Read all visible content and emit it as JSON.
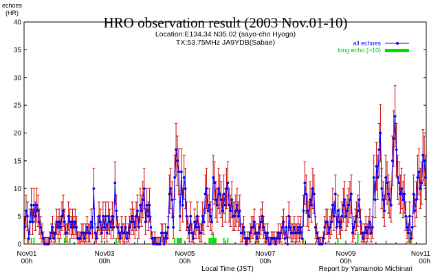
{
  "chart_data": {
    "type": "line",
    "title": "HRO observation result (2003 Nov.01-10)",
    "subtitle_1": "Location:E134.34 N35.02 (sayo-cho Hyogo)",
    "subtitle_2": "TX:53.75MHz JA9YDB(Sabae)",
    "ylabel_1": "echoes",
    "ylabel_2": "(HR)",
    "xlabel": "Local Time (JST)",
    "credit": "Report by Yamamoto Michinari",
    "ylim": [
      0,
      40
    ],
    "yticks": [
      "0",
      "5",
      "10",
      "15",
      "20",
      "25",
      "30",
      "35",
      "40"
    ],
    "xticks": [
      {
        "hour": 0,
        "line1": "Nov01",
        "line2": "00h"
      },
      {
        "hour": 48,
        "line1": "Nov03",
        "line2": "00h"
      },
      {
        "hour": 96,
        "line1": "Nov05",
        "line2": "00h"
      },
      {
        "hour": 144,
        "line1": "Nov07",
        "line2": "00h"
      },
      {
        "hour": 192,
        "line1": "Nov09",
        "line2": "00h"
      },
      {
        "hour": 240,
        "line1": "Nov11",
        "line2": "00h"
      }
    ],
    "xlim_hours": [
      0,
      240
    ],
    "grid": false,
    "legend_position": "top-right",
    "legend": [
      {
        "label": "all echoes",
        "color": "#0000ff"
      },
      {
        "label": "long echo (>10)",
        "color": "#00e000"
      }
    ],
    "series": [
      {
        "name": "all echoes",
        "color": "#0000ff",
        "error_color": "#cc0000",
        "values": [
          3,
          6,
          5,
          1,
          4,
          7,
          4,
          7,
          5,
          7,
          6,
          4,
          3,
          2,
          1,
          0,
          0,
          0,
          0,
          1,
          2,
          3,
          1,
          2,
          4,
          3,
          4,
          3,
          5,
          6,
          4,
          2,
          2,
          5,
          4,
          3,
          4,
          3,
          4,
          3,
          1,
          1,
          1,
          2,
          2,
          1,
          2,
          3,
          2,
          2,
          4,
          3,
          10,
          2,
          1,
          3,
          5,
          4,
          2,
          5,
          3,
          5,
          2,
          5,
          4,
          3,
          5,
          3,
          11,
          6,
          3,
          2,
          1,
          3,
          2,
          2,
          3,
          1,
          2,
          3,
          4,
          5,
          4,
          3,
          5,
          6,
          3,
          7,
          6,
          8,
          10,
          4,
          7,
          5,
          7,
          3,
          1,
          0,
          1,
          0,
          0,
          0,
          0,
          2,
          2,
          0,
          2,
          1,
          3,
          9,
          10,
          8,
          3,
          12,
          17,
          15,
          13,
          5,
          13,
          7,
          12,
          10,
          5,
          3,
          2,
          5,
          2,
          1,
          4,
          3,
          5,
          3,
          2,
          2,
          5,
          4,
          9,
          10,
          6,
          7,
          5,
          4,
          12,
          11,
          8,
          7,
          10,
          9,
          8,
          6,
          9,
          7,
          10,
          11,
          7,
          6,
          8,
          5,
          5,
          6,
          7,
          5,
          6,
          2,
          2,
          3,
          1,
          0,
          1,
          1,
          2,
          3,
          3,
          4,
          2,
          1,
          2,
          3,
          4,
          5,
          3,
          2,
          1,
          2,
          0,
          0,
          1,
          1,
          1,
          0,
          1,
          2,
          1,
          2,
          3,
          4,
          1,
          3,
          0,
          5,
          3,
          2,
          2,
          3,
          2,
          2,
          3,
          2,
          3,
          1,
          6,
          11,
          9,
          6,
          5,
          8,
          7,
          10,
          9,
          3,
          2,
          1,
          0,
          0,
          0,
          1,
          3,
          4,
          4,
          2,
          3,
          4,
          7,
          5,
          9,
          3,
          6,
          4,
          3,
          5,
          7,
          8,
          5,
          6,
          7,
          8,
          9,
          2,
          3,
          4,
          5,
          6,
          8,
          4,
          2,
          1,
          2,
          3,
          2,
          3,
          4,
          2,
          3,
          12,
          8,
          14,
          12,
          17,
          20,
          10,
          8,
          6,
          12,
          11,
          9,
          8,
          7,
          15,
          19,
          23,
          17,
          12,
          11,
          9,
          10,
          8,
          9,
          5,
          3,
          2,
          5,
          1,
          3,
          9,
          6,
          8,
          12,
          13,
          10,
          11,
          16,
          15,
          12
        ]
      }
    ],
    "long_echo_values": [
      0,
      0,
      1,
      0,
      0,
      1,
      0,
      1,
      0,
      0,
      0,
      0,
      0,
      0,
      0,
      0,
      0,
      0,
      0,
      0,
      0,
      0,
      0,
      0,
      0,
      0,
      1,
      0,
      0,
      0,
      1,
      0,
      0,
      0,
      1,
      0,
      0,
      0,
      0,
      0,
      0,
      0,
      0,
      0,
      0,
      0,
      0,
      0,
      0,
      0,
      0,
      0,
      0,
      0,
      0,
      0,
      0,
      0,
      0,
      0,
      0,
      0,
      0,
      0,
      0,
      0,
      0,
      0,
      0,
      1,
      0,
      0,
      0,
      0,
      0,
      0,
      0,
      0,
      0,
      0,
      0,
      0,
      0,
      0,
      0,
      1,
      0,
      0,
      0,
      0,
      0,
      0,
      0,
      0,
      0,
      0,
      0,
      0,
      0,
      0,
      0,
      0,
      0,
      0,
      0,
      0,
      0,
      0,
      0,
      0,
      0,
      0,
      0,
      1,
      0,
      1,
      1,
      1,
      1,
      0,
      0,
      0,
      0,
      0,
      0,
      0,
      0,
      0,
      0,
      0,
      0,
      0,
      0,
      0,
      0,
      0,
      0,
      0,
      0,
      1,
      1,
      1,
      2,
      1,
      1,
      0,
      0,
      0,
      0,
      0,
      1,
      0,
      0,
      1,
      0,
      0,
      0,
      0,
      0,
      0,
      0,
      0,
      0,
      0,
      0,
      0,
      0,
      0,
      0,
      0,
      0,
      0,
      0,
      0,
      0,
      0,
      1,
      0,
      0,
      0,
      0,
      0,
      0,
      0,
      0,
      0,
      0,
      0,
      0,
      0,
      0,
      0,
      0,
      0,
      0,
      0,
      0,
      0,
      0,
      0,
      0,
      0,
      0,
      0,
      0,
      0,
      0,
      0,
      0,
      0,
      1,
      0,
      0,
      0,
      0,
      0,
      0,
      0,
      0,
      0,
      0,
      0,
      0,
      0,
      0,
      0,
      0,
      0,
      0,
      0,
      0,
      0,
      0,
      0,
      0,
      0,
      1,
      0,
      0,
      0,
      0,
      0,
      0,
      0,
      0,
      0,
      0,
      0,
      0,
      0,
      0,
      2,
      0,
      0,
      0,
      0,
      0,
      0,
      0,
      0,
      0,
      0,
      0,
      0,
      0,
      0,
      0,
      0,
      0,
      0,
      0,
      0,
      0,
      0,
      0,
      0,
      0,
      0,
      0,
      0,
      0,
      0,
      0,
      0,
      0,
      0,
      0,
      0,
      0,
      0,
      2,
      1,
      0,
      0,
      0,
      0,
      0,
      0,
      0,
      0,
      0,
      0,
      0,
      0,
      0
    ]
  }
}
